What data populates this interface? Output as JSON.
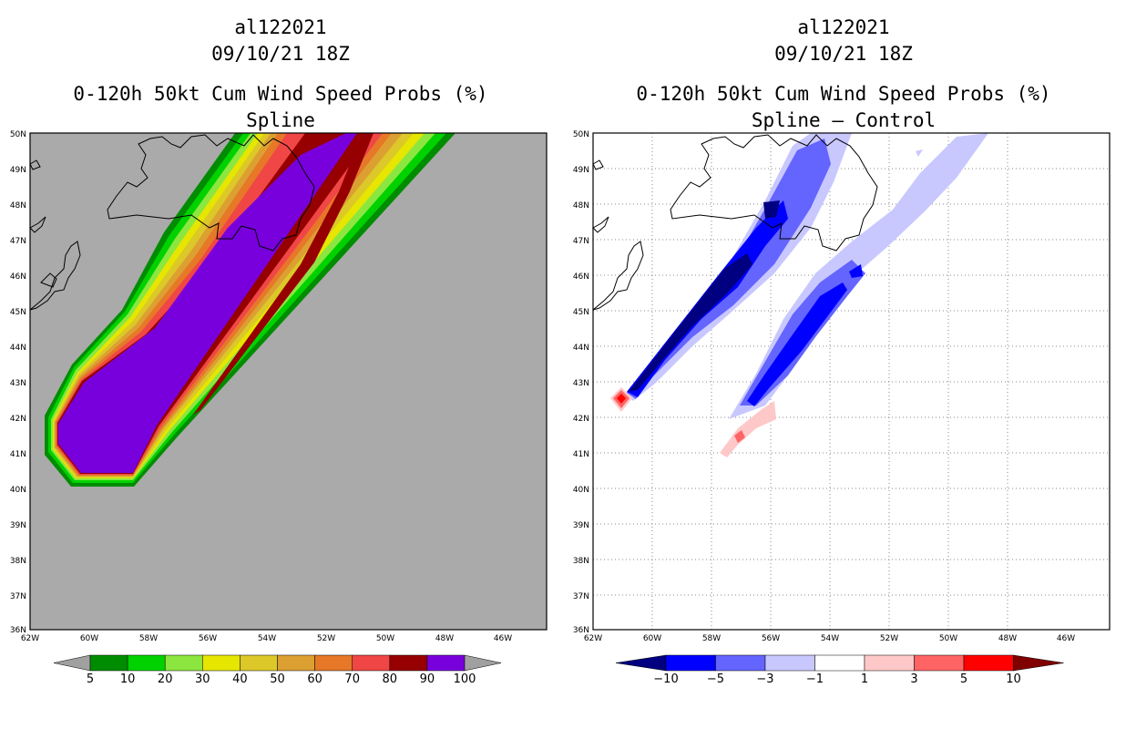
{
  "left_panel": {
    "storm": "al122021",
    "datetime": "09/10/21 18Z",
    "product": "0-120h 50kt Cum Wind Speed Probs (%)",
    "subtitle": "Spline",
    "colorbar": {
      "labels": [
        "5",
        "10",
        "20",
        "30",
        "40",
        "50",
        "60",
        "70",
        "80",
        "90",
        "100"
      ],
      "colors": [
        "#008c00",
        "#00d200",
        "#8ce640",
        "#e6e600",
        "#dcc828",
        "#dca032",
        "#e67828",
        "#f04646",
        "#960000",
        "#7800dc"
      ],
      "end_color": "#a0a0a0"
    },
    "background_color": "#aaaaaa"
  },
  "right_panel": {
    "storm": "al122021",
    "datetime": "09/10/21 18Z",
    "product": "0-120h 50kt Cum Wind Speed Probs (%)",
    "subtitle": "Spline – Control",
    "colorbar": {
      "labels": [
        "−10",
        "−5",
        "−3",
        "−1",
        "1",
        "3",
        "5",
        "10"
      ],
      "colors": [
        "#0000ff",
        "#6464ff",
        "#c8c8ff",
        "#ffffff",
        "#ffc8c8",
        "#ff6464",
        "#ff0000"
      ],
      "low_end_color": "#000080",
      "high_end_color": "#800000"
    }
  },
  "axes": {
    "lat_labels": [
      "50N",
      "49N",
      "48N",
      "47N",
      "46N",
      "45N",
      "44N",
      "43N",
      "42N",
      "41N",
      "40N",
      "39N",
      "38N",
      "37N",
      "36N"
    ],
    "lon_labels": [
      "62W",
      "60W",
      "58W",
      "56W",
      "54W",
      "52W",
      "50W",
      "48W",
      "46W"
    ]
  }
}
